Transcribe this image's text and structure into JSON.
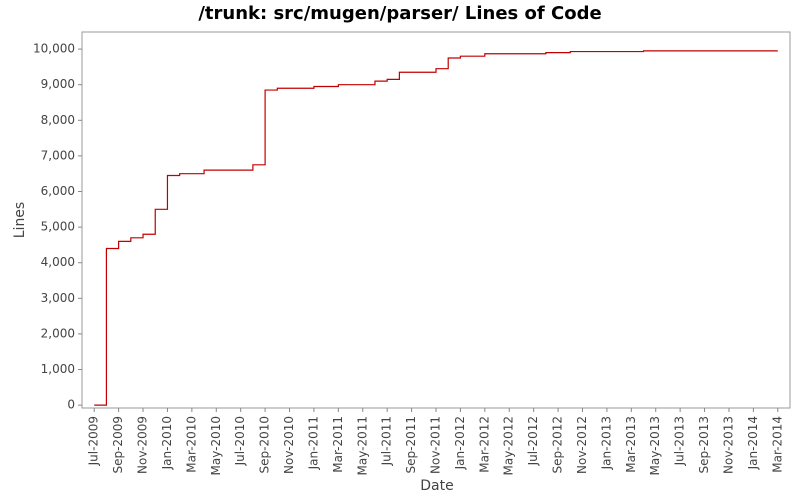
{
  "chart_data": {
    "type": "line",
    "title": "/trunk: src/mugen/parser/ Lines of Code",
    "x_label": "Date",
    "y_label": "Lines",
    "step": true,
    "grid": false,
    "x": [
      "2009-07",
      "2009-08",
      "2009-09",
      "2009-10",
      "2009-11",
      "2009-12",
      "2010-01",
      "2010-02",
      "2010-04",
      "2010-08",
      "2010-09",
      "2010-10",
      "2011-01",
      "2011-03",
      "2011-06",
      "2011-07",
      "2011-08",
      "2011-11",
      "2011-12",
      "2012-01",
      "2012-03",
      "2012-08",
      "2012-10",
      "2013-04",
      "2014-03"
    ],
    "series": [
      {
        "color": "#c00000",
        "values": [
          0,
          4400,
          4600,
          4700,
          4800,
          5500,
          6450,
          6500,
          6600,
          6750,
          8850,
          8900,
          8950,
          9000,
          9100,
          9150,
          9350,
          9450,
          9750,
          9800,
          9870,
          9900,
          9930,
          9950,
          9950
        ]
      }
    ],
    "xlim": [
      "2009-06",
      "2014-04"
    ],
    "xticks": [
      {
        "value": "2009-07",
        "label": "Jul-2009"
      },
      {
        "value": "2009-09",
        "label": "Sep-2009"
      },
      {
        "value": "2009-11",
        "label": "Nov-2009"
      },
      {
        "value": "2010-01",
        "label": "Jan-2010"
      },
      {
        "value": "2010-03",
        "label": "Mar-2010"
      },
      {
        "value": "2010-05",
        "label": "May-2010"
      },
      {
        "value": "2010-07",
        "label": "Jul-2010"
      },
      {
        "value": "2010-09",
        "label": "Sep-2010"
      },
      {
        "value": "2010-11",
        "label": "Nov-2010"
      },
      {
        "value": "2011-01",
        "label": "Jan-2011"
      },
      {
        "value": "2011-03",
        "label": "Mar-2011"
      },
      {
        "value": "2011-05",
        "label": "May-2011"
      },
      {
        "value": "2011-07",
        "label": "Jul-2011"
      },
      {
        "value": "2011-09",
        "label": "Sep-2011"
      },
      {
        "value": "2011-11",
        "label": "Nov-2011"
      },
      {
        "value": "2012-01",
        "label": "Jan-2012"
      },
      {
        "value": "2012-03",
        "label": "Mar-2012"
      },
      {
        "value": "2012-05",
        "label": "May-2012"
      },
      {
        "value": "2012-07",
        "label": "Jul-2012"
      },
      {
        "value": "2012-09",
        "label": "Sep-2012"
      },
      {
        "value": "2012-11",
        "label": "Nov-2012"
      },
      {
        "value": "2013-01",
        "label": "Jan-2013"
      },
      {
        "value": "2013-03",
        "label": "Mar-2013"
      },
      {
        "value": "2013-05",
        "label": "May-2013"
      },
      {
        "value": "2013-07",
        "label": "Jul-2013"
      },
      {
        "value": "2013-09",
        "label": "Sep-2013"
      },
      {
        "value": "2013-11",
        "label": "Nov-2013"
      },
      {
        "value": "2014-01",
        "label": "Jan-2014"
      },
      {
        "value": "2014-03",
        "label": "Mar-2014"
      }
    ],
    "ylim": [
      -80,
      10480
    ],
    "yticks": [
      0,
      {
        "value": 1000,
        "label": "1,000"
      },
      {
        "value": 2000,
        "label": "2,000"
      },
      {
        "value": 3000,
        "label": "3,000"
      },
      {
        "value": 4000,
        "label": "4,000"
      },
      {
        "value": 5000,
        "label": "5,000"
      },
      {
        "value": 6000,
        "label": "6,000"
      },
      {
        "value": 7000,
        "label": "7,000"
      },
      {
        "value": 8000,
        "label": "8,000"
      },
      {
        "value": 9000,
        "label": "9,000"
      },
      {
        "value": 10000,
        "label": "10,000"
      }
    ]
  }
}
